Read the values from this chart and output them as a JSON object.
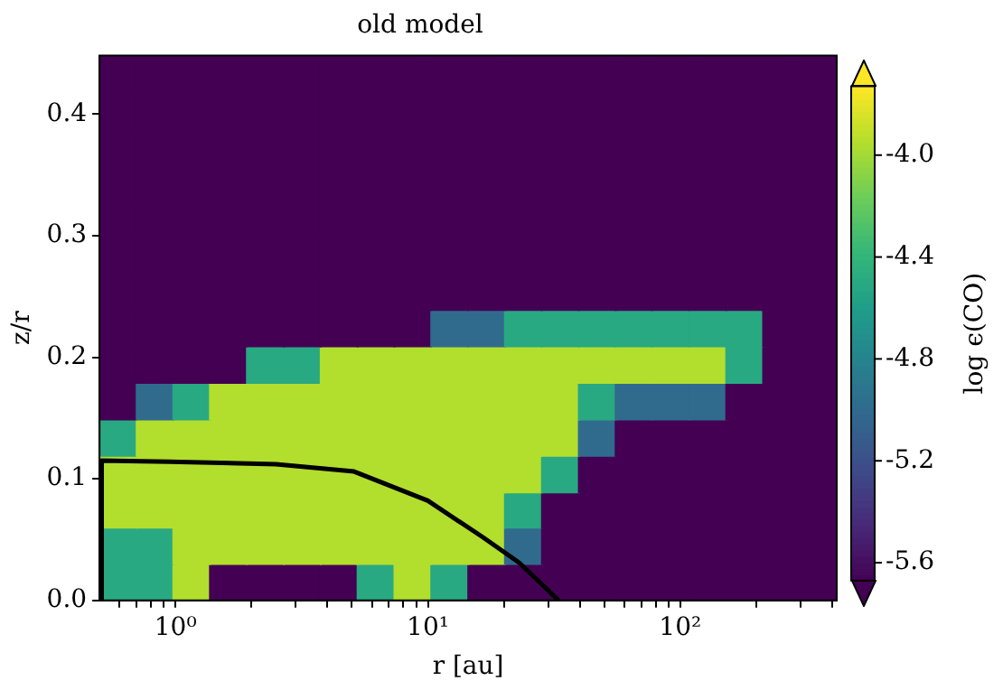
{
  "chart_data": {
    "type": "scatter",
    "title": "old model",
    "xlabel": "r [au]",
    "ylabel": "z/r",
    "clabel": "log ϵ(CO)",
    "log": "x",
    "legend": false,
    "marker": "square",
    "xlim": [
      0.5,
      417
    ],
    "xticks": [
      {
        "value": 0.6,
        "label": null
      },
      {
        "value": 0.7,
        "label": null
      },
      {
        "value": 0.8,
        "label": null
      },
      {
        "value": 0.9,
        "label": null
      },
      {
        "value": 1,
        "label": "10⁰"
      },
      {
        "value": 2,
        "label": null
      },
      {
        "value": 3,
        "label": null
      },
      {
        "value": 4,
        "label": null
      },
      {
        "value": 5,
        "label": null
      },
      {
        "value": 6,
        "label": null
      },
      {
        "value": 7,
        "label": null
      },
      {
        "value": 8,
        "label": null
      },
      {
        "value": 9,
        "label": null
      },
      {
        "value": 10,
        "label": "10¹"
      },
      {
        "value": 20,
        "label": null
      },
      {
        "value": 30,
        "label": null
      },
      {
        "value": 40,
        "label": null
      },
      {
        "value": 50,
        "label": null
      },
      {
        "value": 60,
        "label": null
      },
      {
        "value": 70,
        "label": null
      },
      {
        "value": 80,
        "label": null
      },
      {
        "value": 90,
        "label": null
      },
      {
        "value": 100,
        "label": "10²"
      },
      {
        "value": 200,
        "label": null
      },
      {
        "value": 300,
        "label": null
      },
      {
        "value": 400,
        "label": null
      }
    ],
    "ylim": [
      0,
      0.448
    ],
    "yticks": [
      {
        "value": 0,
        "label": "0.0"
      },
      {
        "value": 0.1,
        "label": "0.1"
      },
      {
        "value": 0.2,
        "label": "0.2"
      },
      {
        "value": 0.3,
        "label": "0.3"
      },
      {
        "value": 0.4,
        "label": "0.4"
      }
    ],
    "clim": [
      -5.67,
      -3.73
    ],
    "cticks": [
      -5.6,
      -5.2,
      -4.8,
      -4.4,
      {
        "value": -4,
        "label": "-4.0"
      }
    ],
    "series": [
      {
        "color": "#440154",
        "x": [
          0.59,
          0.83,
          1.16,
          1.62,
          2.27,
          3.18,
          4.45,
          6.23,
          8.72,
          12.2,
          17.1,
          23.9,
          33.5,
          46.9,
          65.6,
          91.8,
          129,
          180,
          252,
          353
        ],
        "values": [
          0.433,
          0.433,
          0.433,
          0.433,
          0.433,
          0.433,
          0.433,
          0.433,
          0.433,
          0.433,
          0.433,
          0.433,
          0.433,
          0.433,
          0.433,
          0.433,
          0.433,
          0.433,
          0.433,
          0.433
        ]
      },
      {
        "color": "#440154",
        "x": [
          0.59,
          0.83,
          1.16,
          1.62,
          2.27,
          3.18,
          4.45,
          6.23,
          8.72,
          12.2,
          17.1,
          23.9,
          33.5,
          46.9,
          65.6,
          91.8,
          129,
          180,
          252,
          353
        ],
        "values": [
          0.403,
          0.403,
          0.403,
          0.403,
          0.403,
          0.403,
          0.403,
          0.403,
          0.403,
          0.403,
          0.403,
          0.403,
          0.403,
          0.403,
          0.403,
          0.403,
          0.403,
          0.403,
          0.403,
          0.403
        ]
      },
      {
        "color": "#440154",
        "x": [
          0.59,
          0.83,
          1.16,
          1.62,
          2.27,
          3.18,
          4.45,
          6.23,
          8.72,
          12.2,
          17.1,
          23.9,
          33.5,
          46.9,
          65.6,
          91.8,
          129,
          180,
          252,
          353
        ],
        "values": [
          0.373,
          0.373,
          0.373,
          0.373,
          0.373,
          0.373,
          0.373,
          0.373,
          0.373,
          0.373,
          0.373,
          0.373,
          0.373,
          0.373,
          0.373,
          0.373,
          0.373,
          0.373,
          0.373,
          0.373
        ]
      },
      {
        "color": "#440154",
        "x": [
          0.59,
          0.83,
          1.16,
          1.62,
          2.27,
          3.18,
          4.45,
          6.23,
          8.72,
          12.2,
          17.1,
          23.9,
          33.5,
          46.9,
          65.6,
          91.8,
          129,
          180,
          252,
          353
        ],
        "values": [
          0.343,
          0.343,
          0.343,
          0.343,
          0.343,
          0.343,
          0.343,
          0.343,
          0.343,
          0.343,
          0.343,
          0.343,
          0.343,
          0.343,
          0.343,
          0.343,
          0.343,
          0.343,
          0.343,
          0.343
        ]
      },
      {
        "color": "#440154",
        "x": [
          0.59,
          0.83,
          1.16,
          1.62,
          2.27,
          3.18,
          4.45,
          6.23,
          8.72,
          12.2,
          17.1,
          23.9,
          33.5,
          46.9,
          65.6,
          91.8,
          129,
          180,
          252,
          353
        ],
        "values": [
          0.313,
          0.313,
          0.313,
          0.313,
          0.313,
          0.313,
          0.313,
          0.313,
          0.313,
          0.313,
          0.313,
          0.313,
          0.313,
          0.313,
          0.313,
          0.313,
          0.313,
          0.313,
          0.313,
          0.313
        ]
      },
      {
        "color": "#440154",
        "x": [
          0.59,
          0.83,
          1.16,
          1.62,
          2.27,
          3.18,
          4.45,
          6.23,
          8.72,
          12.2,
          17.1,
          23.9,
          33.5,
          46.9,
          65.6,
          91.8,
          129,
          180,
          252,
          353
        ],
        "values": [
          0.284,
          0.284,
          0.284,
          0.284,
          0.284,
          0.284,
          0.284,
          0.284,
          0.284,
          0.284,
          0.284,
          0.284,
          0.284,
          0.284,
          0.284,
          0.284,
          0.284,
          0.284,
          0.284,
          0.284
        ]
      },
      {
        "color": "#440154",
        "x": [
          0.59,
          0.83,
          1.16,
          1.62,
          2.27,
          3.18,
          4.45,
          6.23,
          8.72,
          12.2,
          17.1,
          23.9,
          33.5,
          46.9,
          65.6,
          91.8,
          129,
          180,
          252,
          353
        ],
        "values": [
          0.254,
          0.254,
          0.254,
          0.254,
          0.254,
          0.254,
          0.254,
          0.254,
          0.254,
          0.254,
          0.254,
          0.254,
          0.254,
          0.254,
          0.254,
          0.254,
          0.254,
          0.254,
          0.254,
          0.254
        ]
      },
      {
        "x": [
          0.59,
          0.83,
          1.16,
          1.62,
          2.27,
          3.18,
          4.45,
          6.23,
          8.72,
          12.2,
          17.1,
          23.9,
          33.5,
          46.9,
          65.6,
          91.8,
          129,
          180,
          252,
          353
        ],
        "values": [
          0.224,
          0.224,
          0.224,
          0.224,
          0.224,
          0.224,
          0.224,
          0.224,
          0.224,
          0.224,
          0.224,
          0.224,
          0.224,
          0.224,
          0.224,
          0.224,
          0.224,
          0.224,
          0.224,
          0.224
        ],
        "colors": [
          "#440154",
          "#440154",
          "#440154",
          "#440154",
          "#440154",
          "#440154",
          "#440154",
          "#440154",
          "#440154",
          "#306b8e",
          "#306b8e",
          "#28a982",
          "#28a982",
          "#28a982",
          "#28a982",
          "#28a982",
          "#28a982",
          "#28a982",
          "#440154",
          "#440154"
        ]
      },
      {
        "x": [
          0.59,
          0.83,
          1.16,
          1.62,
          2.27,
          3.18,
          4.45,
          6.23,
          8.72,
          12.2,
          17.1,
          23.9,
          33.5,
          46.9,
          65.6,
          91.8,
          129,
          180,
          252,
          353
        ],
        "values": [
          0.194,
          0.194,
          0.194,
          0.194,
          0.194,
          0.194,
          0.194,
          0.194,
          0.194,
          0.194,
          0.194,
          0.194,
          0.194,
          0.194,
          0.194,
          0.194,
          0.194,
          0.194,
          0.194,
          0.194
        ],
        "colors": [
          "#440154",
          "#440154",
          "#440154",
          "#440154",
          "#28a982",
          "#28a982",
          "#b2de2d",
          "#b2de2d",
          "#b2de2d",
          "#b2de2d",
          "#b2de2d",
          "#b2de2d",
          "#b2de2d",
          "#b2de2d",
          "#b2de2d",
          "#b2de2d",
          "#b2de2d",
          "#28a982",
          "#440154",
          "#440154"
        ]
      },
      {
        "x": [
          0.59,
          0.83,
          1.16,
          1.62,
          2.27,
          3.18,
          4.45,
          6.23,
          8.72,
          12.2,
          17.1,
          23.9,
          33.5,
          46.9,
          65.6,
          91.8,
          129,
          180,
          252,
          353
        ],
        "values": [
          0.164,
          0.164,
          0.164,
          0.164,
          0.164,
          0.164,
          0.164,
          0.164,
          0.164,
          0.164,
          0.164,
          0.164,
          0.164,
          0.164,
          0.164,
          0.164,
          0.164,
          0.164,
          0.164,
          0.164
        ],
        "colors": [
          "#440154",
          "#306b8e",
          "#28a982",
          "#b2de2d",
          "#b2de2d",
          "#b2de2d",
          "#b2de2d",
          "#b2de2d",
          "#b2de2d",
          "#b2de2d",
          "#b2de2d",
          "#b2de2d",
          "#b2de2d",
          "#28a982",
          "#306b8e",
          "#306b8e",
          "#306b8e",
          "#440154",
          "#440154",
          "#440154"
        ]
      },
      {
        "x": [
          0.59,
          0.83,
          1.16,
          1.62,
          2.27,
          3.18,
          4.45,
          6.23,
          8.72,
          12.2,
          17.1,
          23.9,
          33.5,
          46.9,
          65.6,
          91.8,
          129,
          180,
          252,
          353
        ],
        "values": [
          0.134,
          0.134,
          0.134,
          0.134,
          0.134,
          0.134,
          0.134,
          0.134,
          0.134,
          0.134,
          0.134,
          0.134,
          0.134,
          0.134,
          0.134,
          0.134,
          0.134,
          0.134,
          0.134,
          0.134
        ],
        "colors": [
          "#28a982",
          "#b2de2d",
          "#b2de2d",
          "#b2de2d",
          "#b2de2d",
          "#b2de2d",
          "#b2de2d",
          "#b2de2d",
          "#b2de2d",
          "#b2de2d",
          "#b2de2d",
          "#b2de2d",
          "#b2de2d",
          "#306b8e",
          "#440154",
          "#440154",
          "#440154",
          "#440154",
          "#440154",
          "#440154"
        ]
      },
      {
        "x": [
          0.59,
          0.83,
          1.16,
          1.62,
          2.27,
          3.18,
          4.45,
          6.23,
          8.72,
          12.2,
          17.1,
          23.9,
          33.5,
          46.9,
          65.6,
          91.8,
          129,
          180,
          252,
          353
        ],
        "values": [
          0.104,
          0.104,
          0.104,
          0.104,
          0.104,
          0.104,
          0.104,
          0.104,
          0.104,
          0.104,
          0.104,
          0.104,
          0.104,
          0.104,
          0.104,
          0.104,
          0.104,
          0.104,
          0.104,
          0.104
        ],
        "colors": [
          "#b2de2d",
          "#b2de2d",
          "#b2de2d",
          "#b2de2d",
          "#b2de2d",
          "#b2de2d",
          "#b2de2d",
          "#b2de2d",
          "#b2de2d",
          "#b2de2d",
          "#b2de2d",
          "#b2de2d",
          "#28a982",
          "#440154",
          "#440154",
          "#440154",
          "#440154",
          "#440154",
          "#440154",
          "#440154"
        ]
      },
      {
        "x": [
          0.59,
          0.83,
          1.16,
          1.62,
          2.27,
          3.18,
          4.45,
          6.23,
          8.72,
          12.2,
          17.1,
          23.9,
          33.5,
          46.9,
          65.6,
          91.8,
          129,
          180,
          252,
          353
        ],
        "values": [
          0.075,
          0.075,
          0.075,
          0.075,
          0.075,
          0.075,
          0.075,
          0.075,
          0.075,
          0.075,
          0.075,
          0.075,
          0.075,
          0.075,
          0.075,
          0.075,
          0.075,
          0.075,
          0.075,
          0.075
        ],
        "colors": [
          "#b2de2d",
          "#b2de2d",
          "#b2de2d",
          "#b2de2d",
          "#b2de2d",
          "#b2de2d",
          "#b2de2d",
          "#b2de2d",
          "#b2de2d",
          "#b2de2d",
          "#b2de2d",
          "#28a982",
          "#440154",
          "#440154",
          "#440154",
          "#440154",
          "#440154",
          "#440154",
          "#440154",
          "#440154"
        ]
      },
      {
        "x": [
          0.59,
          0.83,
          1.16,
          1.62,
          2.27,
          3.18,
          4.45,
          6.23,
          8.72,
          12.2,
          17.1,
          23.9,
          33.5,
          46.9,
          65.6,
          91.8,
          129,
          180,
          252,
          353
        ],
        "values": [
          0.045,
          0.045,
          0.045,
          0.045,
          0.045,
          0.045,
          0.045,
          0.045,
          0.045,
          0.045,
          0.045,
          0.045,
          0.045,
          0.045,
          0.045,
          0.045,
          0.045,
          0.045,
          0.045,
          0.045
        ],
        "colors": [
          "#28a982",
          "#28a982",
          "#b2de2d",
          "#b2de2d",
          "#b2de2d",
          "#b2de2d",
          "#b2de2d",
          "#b2de2d",
          "#b2de2d",
          "#b2de2d",
          "#b2de2d",
          "#306b8e",
          "#440154",
          "#440154",
          "#440154",
          "#440154",
          "#440154",
          "#440154",
          "#440154",
          "#440154"
        ]
      },
      {
        "x": [
          0.59,
          0.83,
          1.16,
          1.62,
          2.27,
          3.18,
          4.45,
          6.23,
          8.72,
          12.2,
          17.1,
          23.9,
          33.5,
          46.9,
          65.6,
          91.8,
          129,
          180,
          252,
          353
        ],
        "values": [
          0.015,
          0.015,
          0.015,
          0.015,
          0.015,
          0.015,
          0.015,
          0.015,
          0.015,
          0.015,
          0.015,
          0.015,
          0.015,
          0.015,
          0.015,
          0.015,
          0.015,
          0.015,
          0.015,
          0.015
        ],
        "colors": [
          "#28a982",
          "#28a982",
          "#b2de2d",
          "#440154",
          "#440154",
          "#440154",
          "#440154",
          "#28a982",
          "#b2de2d",
          "#28a982",
          "#440154",
          "#440154",
          "#440154",
          "#440154",
          "#440154",
          "#440154",
          "#440154",
          "#440154",
          "#440154",
          "#440154"
        ]
      },
      {
        "type": "line",
        "color": "#000000",
        "line_style": "solid",
        "marker": "none",
        "x": [
          0.51,
          0.51,
          0.95,
          2.5,
          5.1,
          10,
          16.5,
          23,
          33
        ],
        "values": [
          0,
          0.115,
          0.114,
          0.112,
          0.106,
          0.082,
          0.052,
          0.031,
          0
        ]
      }
    ]
  }
}
